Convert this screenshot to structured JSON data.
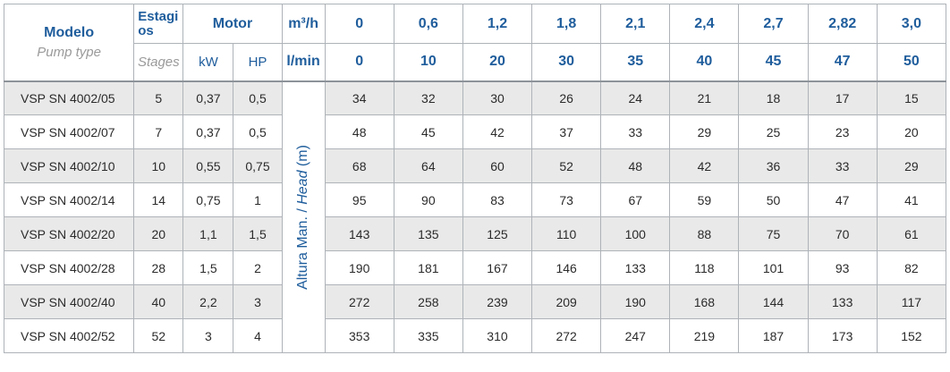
{
  "header": {
    "model_title": "Modelo",
    "model_sub": "Pump type",
    "stages_title": "Estagi os",
    "stages_sub": "Stages",
    "motor_title": "Motor",
    "kw_label": "kW",
    "hp_label": "HP",
    "flow_m3h_label": "m³/h",
    "flow_lmin_label": "l/min",
    "flow_m3h": [
      "0",
      "0,6",
      "1,2",
      "1,8",
      "2,1",
      "2,4",
      "2,7",
      "2,82",
      "3,0"
    ],
    "flow_lmin": [
      "0",
      "10",
      "20",
      "30",
      "35",
      "40",
      "45",
      "47",
      "50"
    ],
    "head_label_a": "Altura Man. / ",
    "head_label_b": "Head",
    "head_label_c": " (m)"
  },
  "rows": [
    {
      "model": "VSP SN 4002/05",
      "stages": "5",
      "kw": "0,37",
      "hp": "0,5",
      "heads": [
        "34",
        "32",
        "30",
        "26",
        "24",
        "21",
        "18",
        "17",
        "15"
      ]
    },
    {
      "model": "VSP SN 4002/07",
      "stages": "7",
      "kw": "0,37",
      "hp": "0,5",
      "heads": [
        "48",
        "45",
        "42",
        "37",
        "33",
        "29",
        "25",
        "23",
        "20"
      ]
    },
    {
      "model": "VSP SN 4002/10",
      "stages": "10",
      "kw": "0,55",
      "hp": "0,75",
      "heads": [
        "68",
        "64",
        "60",
        "52",
        "48",
        "42",
        "36",
        "33",
        "29"
      ]
    },
    {
      "model": "VSP SN 4002/14",
      "stages": "14",
      "kw": "0,75",
      "hp": "1",
      "heads": [
        "95",
        "90",
        "83",
        "73",
        "67",
        "59",
        "50",
        "47",
        "41"
      ]
    },
    {
      "model": "VSP SN 4002/20",
      "stages": "20",
      "kw": "1,1",
      "hp": "1,5",
      "heads": [
        "143",
        "135",
        "125",
        "110",
        "100",
        "88",
        "75",
        "70",
        "61"
      ]
    },
    {
      "model": "VSP SN 4002/28",
      "stages": "28",
      "kw": "1,5",
      "hp": "2",
      "heads": [
        "190",
        "181",
        "167",
        "146",
        "133",
        "118",
        "101",
        "93",
        "82"
      ]
    },
    {
      "model": "VSP SN 4002/40",
      "stages": "40",
      "kw": "2,2",
      "hp": "3",
      "heads": [
        "272",
        "258",
        "239",
        "209",
        "190",
        "168",
        "144",
        "133",
        "117"
      ]
    },
    {
      "model": "VSP SN 4002/52",
      "stages": "52",
      "kw": "3",
      "hp": "4",
      "heads": [
        "353",
        "335",
        "310",
        "272",
        "247",
        "219",
        "187",
        "173",
        "152"
      ]
    }
  ],
  "colors": {
    "header_text": "#1f5d9c",
    "subtitle_text": "#9a9a9a",
    "row_shade": "#e9e9e9",
    "border": "#aeb3b8"
  }
}
